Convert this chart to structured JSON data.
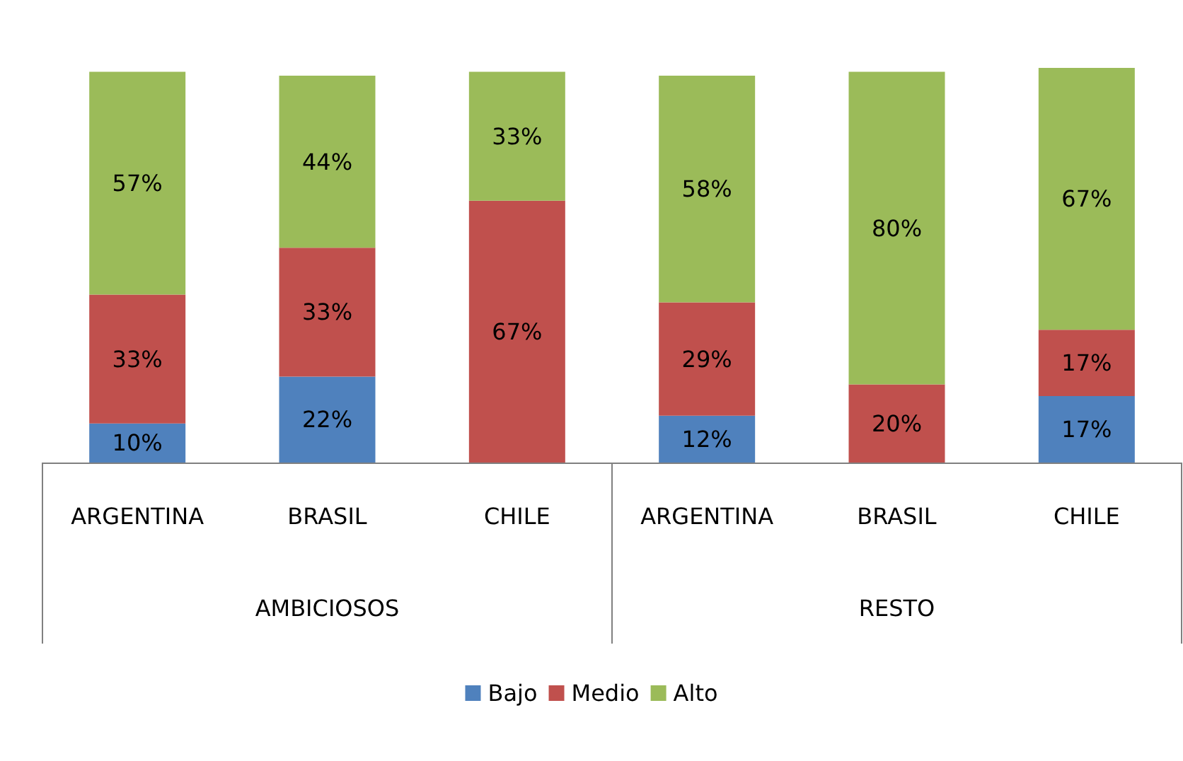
{
  "chart_data": {
    "type": "bar",
    "stacked": true,
    "categories": [
      "ARGENTINA",
      "BRASIL",
      "CHILE",
      "ARGENTINA",
      "BRASIL",
      "CHILE"
    ],
    "annotations": [
      "AMBICIOSOS",
      "RESTO"
    ],
    "series": [
      {
        "name": "Bajo",
        "color": "#4f81bd",
        "values": [
          10,
          22,
          0,
          12,
          0,
          17
        ],
        "value_labels": [
          "10%",
          "22%",
          null,
          "12%",
          null,
          "17%"
        ]
      },
      {
        "name": "Medio",
        "color": "#c0504d",
        "values": [
          33,
          33,
          67,
          29,
          20,
          17
        ],
        "value_labels": [
          "33%",
          "33%",
          "67%",
          "29%",
          "20%",
          "17%"
        ]
      },
      {
        "name": "Alto",
        "color": "#9bbb59",
        "values": [
          57,
          44,
          33,
          58,
          80,
          67
        ],
        "value_labels": [
          "57%",
          "44%",
          "33%",
          "58%",
          "80%",
          "67%"
        ]
      }
    ],
    "tick_labels": "x",
    "legend": "bottom"
  }
}
